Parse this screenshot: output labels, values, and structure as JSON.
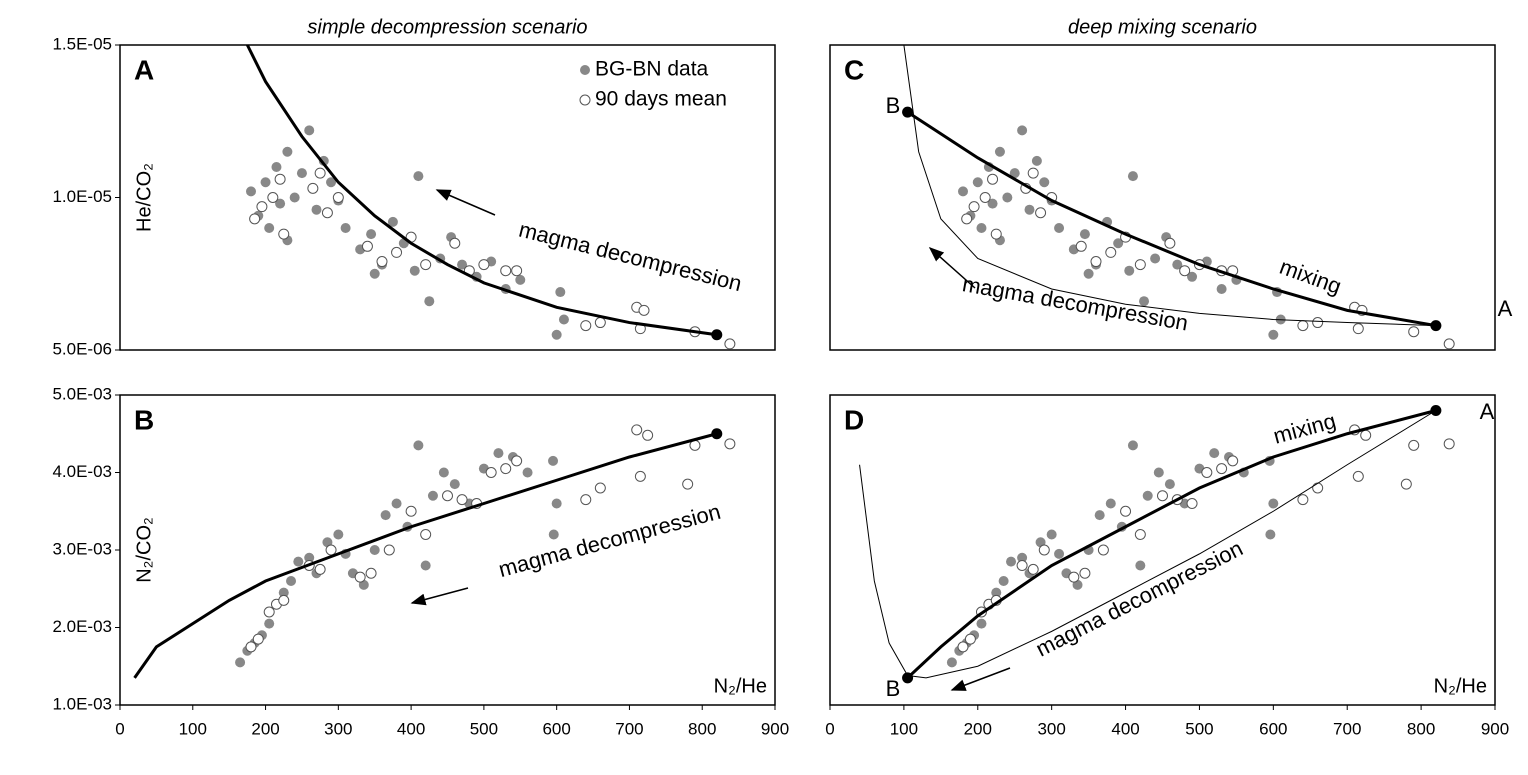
{
  "chart_data": [
    {
      "type": "scatter",
      "panel_label": "A",
      "title": "simple decompression scenario",
      "y_label": "He/CO₂",
      "xlim": [
        0,
        900
      ],
      "ylim": [
        5e-06,
        1.5e-05
      ],
      "yticks": [
        {
          "value": 5e-06,
          "label": "5.0E-06"
        },
        {
          "value": 1e-05,
          "label": "1.0E-05"
        },
        {
          "value": 1.5e-05,
          "label": "1.5E-05"
        }
      ],
      "legend": "upper right",
      "series": [
        {
          "name": "BG-BN data",
          "color": "#888888",
          "x": [
            180,
            190,
            200,
            205,
            215,
            220,
            230,
            240,
            250,
            260,
            270,
            280,
            290,
            300,
            310,
            330,
            345,
            360,
            375,
            390,
            405,
            410,
            425,
            440,
            455,
            470,
            490,
            510,
            530,
            550,
            600,
            605,
            610,
            230,
            350
          ],
          "values": [
            1.02e-05,
            9.4e-06,
            1.05e-05,
            9e-06,
            1.1e-05,
            9.8e-06,
            1.15e-05,
            1e-05,
            1.08e-05,
            1.22e-05,
            9.6e-06,
            1.12e-05,
            1.05e-05,
            9.9e-06,
            9e-06,
            8.3e-06,
            8.8e-06,
            7.8e-06,
            9.2e-06,
            8.5e-06,
            7.6e-06,
            1.07e-05,
            6.6e-06,
            8e-06,
            8.7e-06,
            7.8e-06,
            7.4e-06,
            7.9e-06,
            7e-06,
            7.3e-06,
            5.5e-06,
            6.9e-06,
            6e-06,
            8.6e-06,
            7.5e-06
          ]
        },
        {
          "name": "90 days mean",
          "color": "#ffffff",
          "x": [
            185,
            195,
            210,
            220,
            225,
            265,
            275,
            285,
            300,
            340,
            360,
            380,
            400,
            420,
            460,
            480,
            500,
            530,
            545,
            640,
            660,
            710,
            715,
            720,
            790,
            838
          ],
          "values": [
            9.3e-06,
            9.7e-06,
            1e-05,
            1.06e-05,
            8.8e-06,
            1.03e-05,
            1.08e-05,
            9.5e-06,
            1e-05,
            8.4e-06,
            7.9e-06,
            8.2e-06,
            8.7e-06,
            7.8e-06,
            8.5e-06,
            7.6e-06,
            7.8e-06,
            7.6e-06,
            7.6e-06,
            5.8e-06,
            5.9e-06,
            6.4e-06,
            5.7e-06,
            6.3e-06,
            5.6e-06,
            5.2e-06
          ]
        },
        {
          "color": "#000000",
          "width": 3,
          "x": [
            175,
            200,
            250,
            300,
            350,
            400,
            450,
            500,
            600,
            700,
            820
          ],
          "values": [
            1.5e-05,
            1.38e-05,
            1.2e-05,
            1.05e-05,
            9.4e-06,
            8.5e-06,
            7.8e-06,
            7.2e-06,
            6.4e-06,
            5.9e-06,
            5.5e-06
          ]
        }
      ],
      "annotations": [
        "magma decompression"
      ]
    },
    {
      "type": "scatter",
      "panel_label": "B",
      "y_label": "N₂/CO₂",
      "x_label": "N₂/He",
      "xlim": [
        0,
        900
      ],
      "xticks": [
        0,
        100,
        200,
        300,
        400,
        500,
        600,
        700,
        800,
        900
      ],
      "ylim": [
        0.001,
        0.005
      ],
      "yticks": [
        {
          "value": 0.001,
          "label": "1.0E-03"
        },
        {
          "value": 0.002,
          "label": "2.0E-03"
        },
        {
          "value": 0.003,
          "label": "3.0E-03"
        },
        {
          "value": 0.004,
          "label": "4.0E-03"
        },
        {
          "value": 0.005,
          "label": "5.0E-03"
        }
      ],
      "series": [
        {
          "color": "#888888",
          "x": [
            165,
            175,
            185,
            195,
            205,
            215,
            225,
            235,
            245,
            260,
            270,
            285,
            300,
            310,
            320,
            335,
            350,
            365,
            380,
            395,
            410,
            420,
            430,
            445,
            460,
            480,
            500,
            520,
            540,
            560,
            595,
            600,
            596
          ],
          "values": [
            0.00155,
            0.0017,
            0.0018,
            0.0019,
            0.00205,
            0.0023,
            0.00245,
            0.0026,
            0.00285,
            0.0029,
            0.0027,
            0.0031,
            0.0032,
            0.00295,
            0.0027,
            0.00255,
            0.003,
            0.00345,
            0.0036,
            0.0033,
            0.00435,
            0.0028,
            0.0037,
            0.004,
            0.00385,
            0.0036,
            0.00405,
            0.00425,
            0.0042,
            0.004,
            0.00415,
            0.0036,
            0.0032
          ]
        },
        {
          "color": "#ffffff",
          "x": [
            180,
            190,
            205,
            215,
            225,
            260,
            275,
            290,
            330,
            345,
            370,
            400,
            420,
            450,
            470,
            490,
            510,
            530,
            545,
            640,
            660,
            710,
            715,
            725,
            780,
            790,
            838
          ],
          "values": [
            0.00175,
            0.00185,
            0.0022,
            0.0023,
            0.00235,
            0.0028,
            0.00275,
            0.003,
            0.00265,
            0.0027,
            0.003,
            0.0035,
            0.0032,
            0.0037,
            0.00365,
            0.0036,
            0.004,
            0.00405,
            0.00415,
            0.00365,
            0.0038,
            0.00455,
            0.00395,
            0.00448,
            0.00385,
            0.00435,
            0.00437
          ]
        },
        {
          "color": "#000000",
          "width": 3,
          "x": [
            20,
            50,
            100,
            150,
            200,
            300,
            400,
            500,
            600,
            700,
            820
          ],
          "values": [
            0.00135,
            0.00175,
            0.00205,
            0.00235,
            0.0026,
            0.00295,
            0.0033,
            0.0036,
            0.0039,
            0.0042,
            0.0045
          ]
        }
      ],
      "annotations": [
        "magma decompression"
      ]
    },
    {
      "type": "scatter",
      "panel_label": "C",
      "title": "deep mixing scenario",
      "xlim": [
        0,
        900
      ],
      "ylim": [
        5e-06,
        1.5e-05
      ],
      "series": [
        {
          "color": "#888888",
          "x": [
            180,
            190,
            200,
            205,
            215,
            220,
            230,
            240,
            250,
            260,
            270,
            280,
            290,
            300,
            310,
            330,
            345,
            360,
            375,
            390,
            405,
            410,
            425,
            440,
            455,
            470,
            490,
            510,
            530,
            550,
            600,
            605,
            610,
            230,
            350
          ],
          "values": [
            1.02e-05,
            9.4e-06,
            1.05e-05,
            9e-06,
            1.1e-05,
            9.8e-06,
            1.15e-05,
            1e-05,
            1.08e-05,
            1.22e-05,
            9.6e-06,
            1.12e-05,
            1.05e-05,
            9.9e-06,
            9e-06,
            8.3e-06,
            8.8e-06,
            7.8e-06,
            9.2e-06,
            8.5e-06,
            7.6e-06,
            1.07e-05,
            6.6e-06,
            8e-06,
            8.7e-06,
            7.8e-06,
            7.4e-06,
            7.9e-06,
            7e-06,
            7.3e-06,
            5.5e-06,
            6.9e-06,
            6e-06,
            8.6e-06,
            7.5e-06
          ]
        },
        {
          "color": "#ffffff",
          "x": [
            185,
            195,
            210,
            220,
            225,
            265,
            275,
            285,
            300,
            340,
            360,
            380,
            400,
            420,
            460,
            480,
            500,
            530,
            545,
            640,
            660,
            710,
            715,
            720,
            790,
            838
          ],
          "values": [
            9.3e-06,
            9.7e-06,
            1e-05,
            1.06e-05,
            8.8e-06,
            1.03e-05,
            1.08e-05,
            9.5e-06,
            1e-05,
            8.4e-06,
            7.9e-06,
            8.2e-06,
            8.7e-06,
            7.8e-06,
            8.5e-06,
            7.6e-06,
            7.8e-06,
            7.6e-06,
            7.6e-06,
            5.8e-06,
            5.9e-06,
            6.4e-06,
            5.7e-06,
            6.3e-06,
            5.6e-06,
            5.2e-06
          ]
        },
        {
          "color": "#000000",
          "width": 3,
          "x": [
            105,
            200,
            300,
            400,
            500,
            600,
            700,
            820
          ],
          "values": [
            1.28e-05,
            1.13e-05,
            9.9e-06,
            8.8e-06,
            7.8e-06,
            7e-06,
            6.3e-06,
            5.8e-06
          ]
        },
        {
          "color": "#000000",
          "width": 1,
          "x": [
            100,
            120,
            150,
            200,
            300,
            400,
            500,
            600,
            700,
            820
          ],
          "values": [
            1.5e-05,
            1.15e-05,
            9.3e-06,
            8e-06,
            7e-06,
            6.5e-06,
            6.2e-06,
            6e-06,
            5.9e-06,
            5.8e-06
          ]
        }
      ],
      "annotations": [
        "mixing",
        "magma decompression",
        "B",
        "A"
      ]
    },
    {
      "type": "scatter",
      "panel_label": "D",
      "x_label": "N₂/He",
      "xlim": [
        0,
        900
      ],
      "xticks": [
        0,
        100,
        200,
        300,
        400,
        500,
        600,
        700,
        800,
        900
      ],
      "ylim": [
        0.001,
        0.005
      ],
      "series": [
        {
          "color": "#888888",
          "x": [
            165,
            175,
            185,
            195,
            205,
            215,
            225,
            235,
            245,
            260,
            270,
            285,
            300,
            310,
            320,
            335,
            350,
            365,
            380,
            395,
            410,
            420,
            430,
            445,
            460,
            480,
            500,
            520,
            540,
            560,
            595,
            600,
            596
          ],
          "values": [
            0.00155,
            0.0017,
            0.0018,
            0.0019,
            0.00205,
            0.0023,
            0.00245,
            0.0026,
            0.00285,
            0.0029,
            0.0027,
            0.0031,
            0.0032,
            0.00295,
            0.0027,
            0.00255,
            0.003,
            0.00345,
            0.0036,
            0.0033,
            0.00435,
            0.0028,
            0.0037,
            0.004,
            0.00385,
            0.0036,
            0.00405,
            0.00425,
            0.0042,
            0.004,
            0.00415,
            0.0036,
            0.0032
          ]
        },
        {
          "color": "#ffffff",
          "x": [
            180,
            190,
            205,
            215,
            225,
            260,
            275,
            290,
            330,
            345,
            370,
            400,
            420,
            450,
            470,
            490,
            510,
            530,
            545,
            640,
            660,
            710,
            715,
            725,
            780,
            790,
            838
          ],
          "values": [
            0.00175,
            0.00185,
            0.0022,
            0.0023,
            0.00235,
            0.0028,
            0.00275,
            0.003,
            0.00265,
            0.0027,
            0.003,
            0.0035,
            0.0032,
            0.0037,
            0.00365,
            0.0036,
            0.004,
            0.00405,
            0.00415,
            0.00365,
            0.0038,
            0.00455,
            0.00395,
            0.00448,
            0.00385,
            0.00435,
            0.00437
          ]
        },
        {
          "color": "#000000",
          "width": 3,
          "x": [
            105,
            150,
            200,
            300,
            400,
            500,
            600,
            700,
            820
          ],
          "values": [
            0.00135,
            0.00175,
            0.00215,
            0.0028,
            0.0033,
            0.0038,
            0.0042,
            0.0045,
            0.0048
          ]
        },
        {
          "color": "#000000",
          "width": 1,
          "x": [
            40,
            60,
            80,
            105,
            130,
            200,
            300,
            400,
            500,
            600,
            700,
            820
          ],
          "values": [
            0.0041,
            0.0026,
            0.0018,
            0.00138,
            0.00135,
            0.0015,
            0.00195,
            0.00245,
            0.00295,
            0.0035,
            0.0041,
            0.0048
          ]
        }
      ],
      "annotations": [
        "mixing",
        "magma decompression",
        "B",
        "A"
      ]
    }
  ]
}
